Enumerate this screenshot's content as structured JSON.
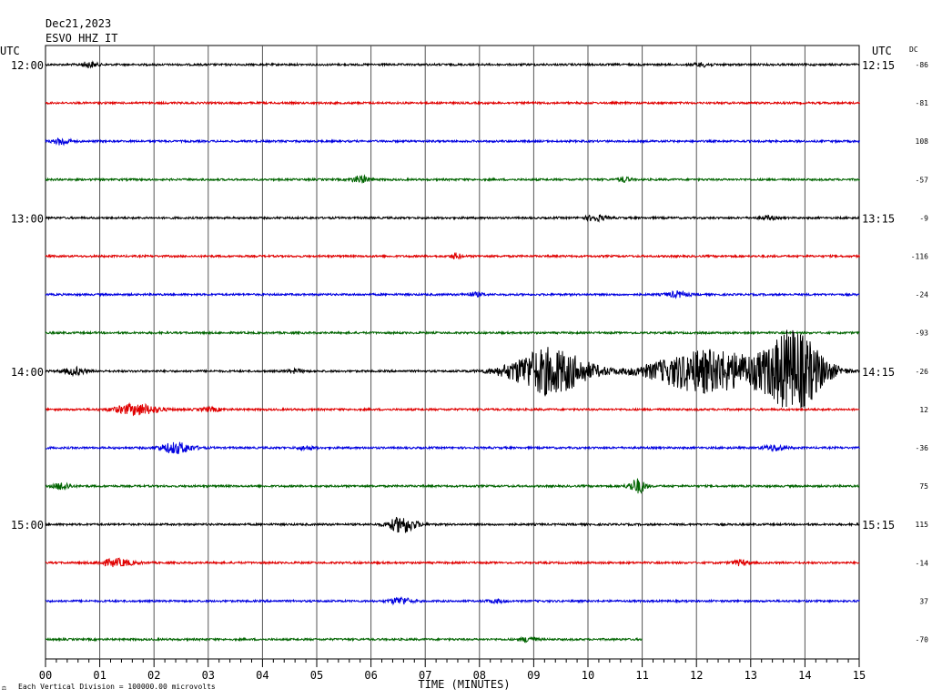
{
  "header": {
    "date": "Dec21,2023",
    "station": "ESVO HHZ IT",
    "left_utc": "UTC",
    "right_utc": "UTC",
    "dc_header": "DC"
  },
  "footer": {
    "mark": "⚖",
    "scale_note": "Each Vertical Division = 100000.00 microvolts"
  },
  "chart_data": {
    "type": "line",
    "title": "Dec21,2023",
    "subtitle": "ESVO HHZ IT",
    "xlabel": "TIME (MINUTES)",
    "ylabel": "",
    "xlim": [
      0,
      15
    ],
    "x_ticks": [
      "00",
      "01",
      "02",
      "03",
      "04",
      "05",
      "06",
      "07",
      "08",
      "09",
      "10",
      "11",
      "12",
      "13",
      "14",
      "15"
    ],
    "grid": true,
    "trace_colors": [
      "#000000",
      "#e00000",
      "#0000e0",
      "#006400"
    ],
    "left_hour_labels": [
      {
        "trace": 0,
        "text": "12:00"
      },
      {
        "trace": 4,
        "text": "13:00"
      },
      {
        "trace": 8,
        "text": "14:00"
      },
      {
        "trace": 12,
        "text": "15:00"
      }
    ],
    "right_hour_labels": [
      {
        "trace": 0,
        "text": "12:15"
      },
      {
        "trace": 4,
        "text": "13:15"
      },
      {
        "trace": 8,
        "text": "14:15"
      },
      {
        "trace": 12,
        "text": "15:15"
      }
    ],
    "dc_offsets": [
      "-86",
      "-81",
      "108",
      "-57",
      "-9",
      "-116",
      "-24",
      "-93",
      "-26",
      "12",
      "-36",
      "75",
      "115",
      "-14",
      "37",
      "-70"
    ],
    "trace_end_minutes": [
      15,
      15,
      15,
      15,
      15,
      15,
      15,
      15,
      15,
      15,
      15,
      15,
      15,
      15,
      15,
      11
    ],
    "events": [
      {
        "trace": 0,
        "t": 0.7,
        "dur": 0.3,
        "amp": 3
      },
      {
        "trace": 0,
        "t": 12.0,
        "dur": 0.3,
        "amp": 2
      },
      {
        "trace": 2,
        "t": 0.2,
        "dur": 0.3,
        "amp": 4
      },
      {
        "trace": 3,
        "t": 5.7,
        "dur": 0.3,
        "amp": 4
      },
      {
        "trace": 3,
        "t": 10.6,
        "dur": 0.2,
        "amp": 3
      },
      {
        "trace": 4,
        "t": 10.0,
        "dur": 0.4,
        "amp": 3
      },
      {
        "trace": 4,
        "t": 13.2,
        "dur": 0.3,
        "amp": 2
      },
      {
        "trace": 5,
        "t": 7.5,
        "dur": 0.2,
        "amp": 3
      },
      {
        "trace": 6,
        "t": 7.8,
        "dur": 0.3,
        "amp": 2
      },
      {
        "trace": 6,
        "t": 11.5,
        "dur": 0.4,
        "amp": 3
      },
      {
        "trace": 8,
        "t": 0.4,
        "dur": 0.4,
        "amp": 4
      },
      {
        "trace": 8,
        "t": 4.5,
        "dur": 0.3,
        "amp": 2
      },
      {
        "trace": 8,
        "t": 8.8,
        "dur": 1.4,
        "amp": 26
      },
      {
        "trace": 8,
        "t": 11.5,
        "dur": 2.0,
        "amp": 24
      },
      {
        "trace": 8,
        "t": 13.4,
        "dur": 1.1,
        "amp": 44
      },
      {
        "trace": 9,
        "t": 1.4,
        "dur": 0.8,
        "amp": 6
      },
      {
        "trace": 9,
        "t": 2.9,
        "dur": 0.4,
        "amp": 2
      },
      {
        "trace": 10,
        "t": 2.2,
        "dur": 0.6,
        "amp": 6
      },
      {
        "trace": 10,
        "t": 4.7,
        "dur": 0.3,
        "amp": 2
      },
      {
        "trace": 10,
        "t": 13.3,
        "dur": 0.4,
        "amp": 3
      },
      {
        "trace": 11,
        "t": 0.2,
        "dur": 0.3,
        "amp": 4
      },
      {
        "trace": 11,
        "t": 10.8,
        "dur": 0.3,
        "amp": 8
      },
      {
        "trace": 12,
        "t": 6.4,
        "dur": 0.5,
        "amp": 9
      },
      {
        "trace": 13,
        "t": 1.1,
        "dur": 0.6,
        "amp": 4
      },
      {
        "trace": 13,
        "t": 12.7,
        "dur": 0.3,
        "amp": 3
      },
      {
        "trace": 14,
        "t": 6.4,
        "dur": 0.4,
        "amp": 4
      },
      {
        "trace": 14,
        "t": 8.2,
        "dur": 0.3,
        "amp": 2
      },
      {
        "trace": 15,
        "t": 8.8,
        "dur": 0.3,
        "amp": 3
      }
    ]
  }
}
